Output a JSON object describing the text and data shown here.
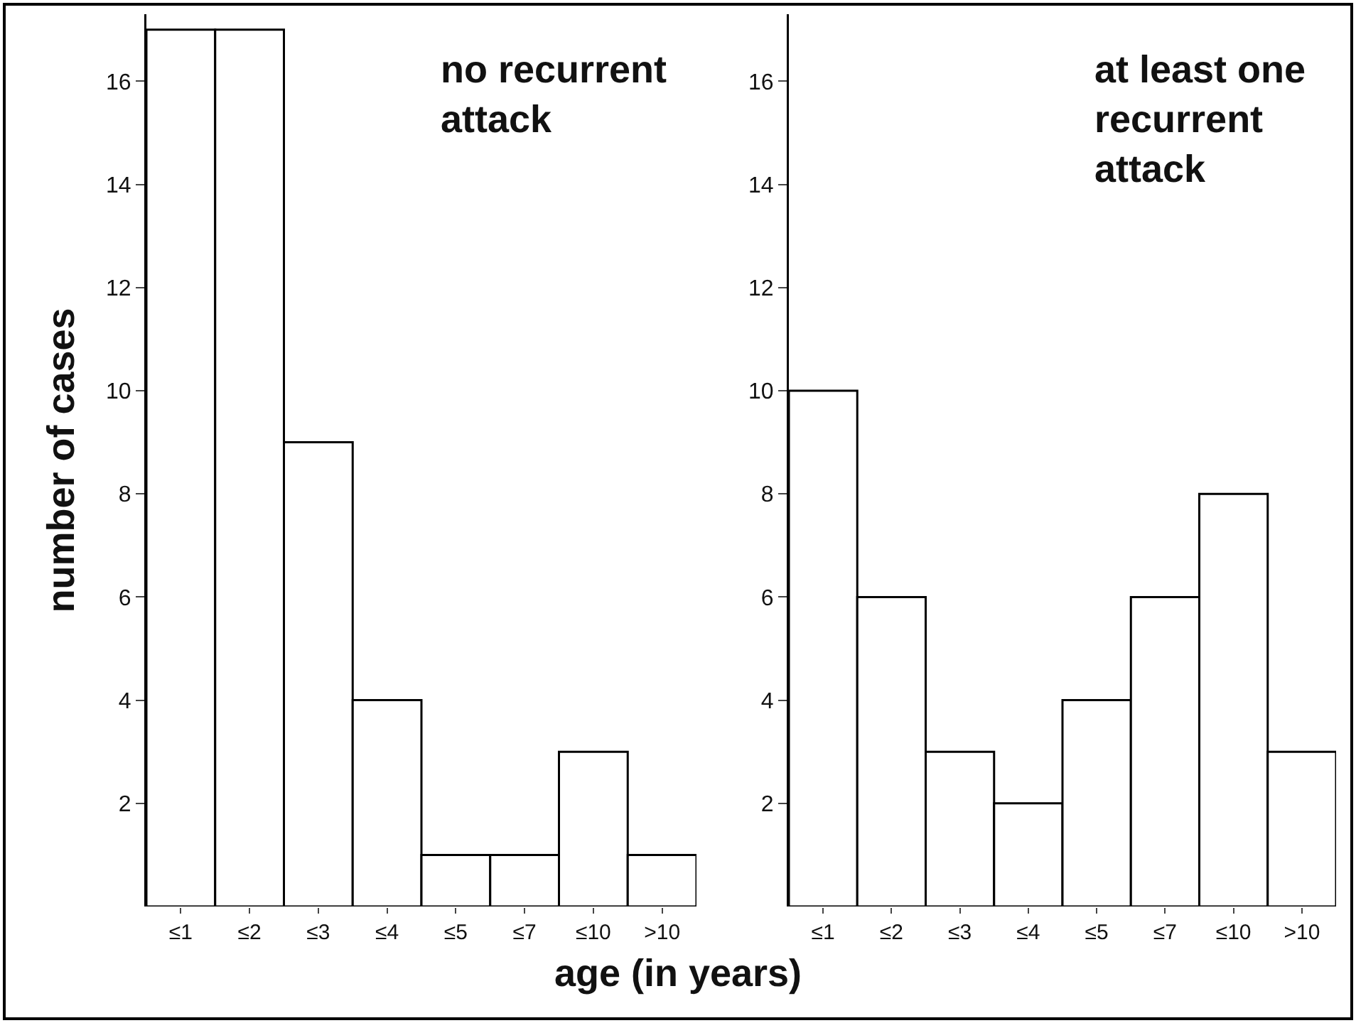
{
  "chart_data": [
    {
      "type": "bar",
      "title": "no recurrent attack",
      "ylabel": "number of cases",
      "xlabel": "age (in years)",
      "categories": [
        "≤1",
        "≤2",
        "≤3",
        "≤4",
        "≤5",
        "≤7",
        "≤10",
        ">10"
      ],
      "values": [
        17,
        17,
        9,
        4,
        1,
        1,
        3,
        1
      ],
      "color": "#ffffff",
      "ylim": [
        0,
        17.3
      ],
      "yticks": [
        2,
        4,
        6,
        8,
        10,
        12,
        14,
        16
      ]
    },
    {
      "type": "bar",
      "title": "at least one recurrent attack",
      "categories": [
        "≤1",
        "≤2",
        "≤3",
        "≤4",
        "≤5",
        "≤7",
        "≤10",
        ">10"
      ],
      "values": [
        10,
        6,
        3,
        2,
        4,
        6,
        8,
        3
      ],
      "color": "#ffffff",
      "ylim": [
        0,
        17.3
      ],
      "yticks": [
        2,
        4,
        6,
        8,
        10,
        12,
        14,
        16
      ]
    }
  ]
}
